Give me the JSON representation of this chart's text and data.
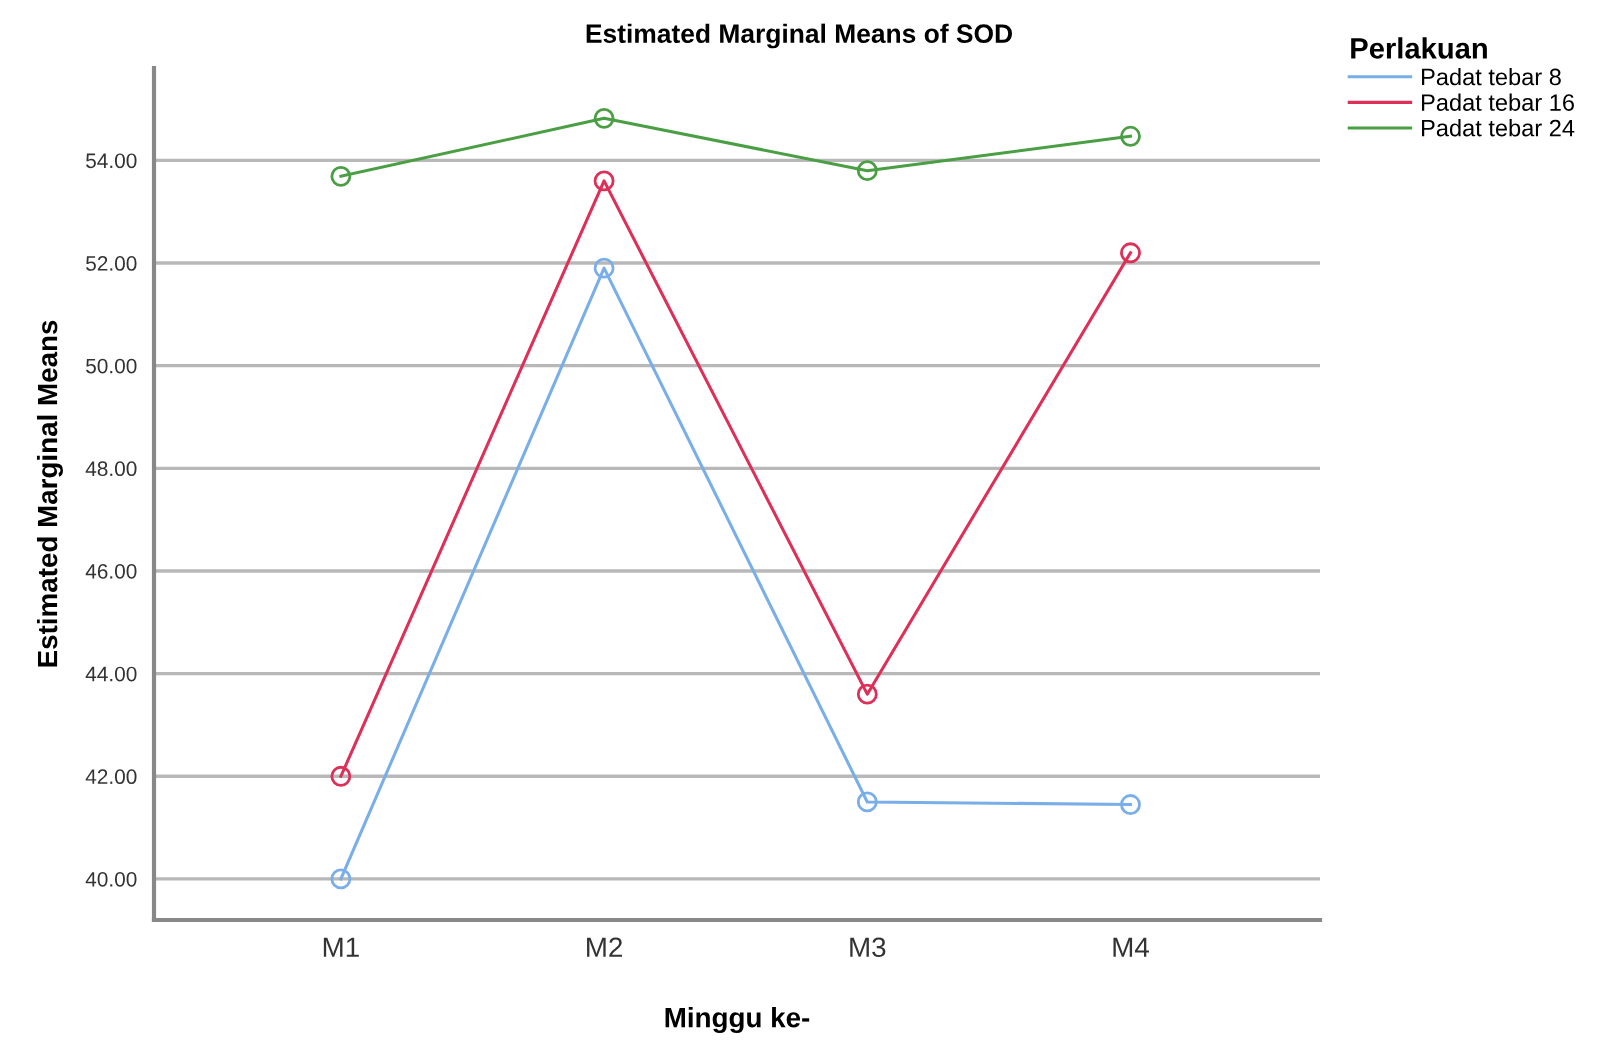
{
  "chart_data": {
    "type": "line",
    "title": "Estimated Marginal Means of SOD",
    "xlabel": "Minggu ke-",
    "ylabel": "Estimated Marginal Means",
    "legend_title": "Perlakuan",
    "categories": [
      "M1",
      "M2",
      "M3",
      "M4"
    ],
    "series": [
      {
        "name": "Padat tebar 8",
        "color": "#79aee8",
        "values": [
          40.0,
          51.9,
          41.5,
          41.45
        ]
      },
      {
        "name": "Padat tebar 16",
        "color": "#dd2f58",
        "values": [
          42.0,
          53.6,
          43.6,
          52.2
        ]
      },
      {
        "name": "Padat tebar 24",
        "color": "#4a9e44",
        "values": [
          53.69,
          54.82,
          53.8,
          54.47
        ]
      }
    ],
    "ylim": [
      39.2,
      55.8
    ],
    "yticks": [
      {
        "value": 40,
        "label": "40.00"
      },
      {
        "value": 42,
        "label": "42.00"
      },
      {
        "value": 44,
        "label": "44.00"
      },
      {
        "value": 46,
        "label": "46.00"
      },
      {
        "value": 48,
        "label": "48.00"
      },
      {
        "value": 50,
        "label": "50.00"
      },
      {
        "value": 52,
        "label": "52.00"
      },
      {
        "value": 54,
        "label": "54.00"
      }
    ],
    "grid": "y",
    "legend": "top right",
    "marker": "circle",
    "line_style": "solid"
  }
}
